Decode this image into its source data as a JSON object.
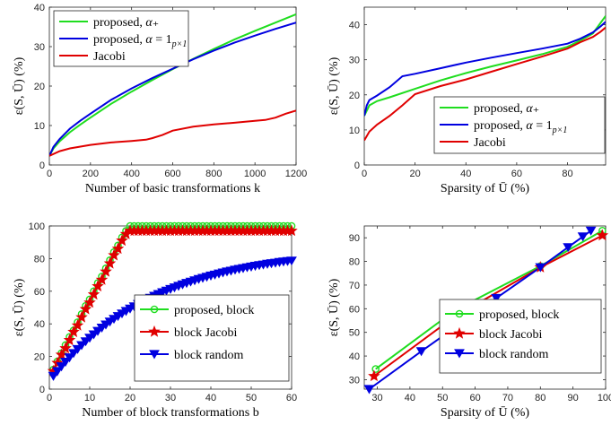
{
  "chart_data": [
    {
      "type": "line",
      "xlabel": "Number of basic transformations k",
      "ylabel": "ε(S, Ū) (%)",
      "xlim": [
        0,
        1200
      ],
      "ylim": [
        0,
        40
      ],
      "xticks": [
        "0",
        "200",
        "400",
        "600",
        "800",
        "1000",
        "1200"
      ],
      "yticks": [
        "0",
        "10",
        "20",
        "30",
        "40"
      ],
      "legend_position": "top-left",
      "series": [
        {
          "name": "proposed, α₊",
          "color": "#1fdd1f",
          "marker": "none",
          "x": [
            0,
            20,
            50,
            100,
            150,
            200,
            300,
            400,
            500,
            600,
            700,
            800,
            900,
            1000,
            1100,
            1200
          ],
          "y": [
            2.3,
            4.2,
            6.0,
            8.3,
            10.2,
            12.0,
            15.5,
            18.6,
            21.5,
            24.3,
            26.9,
            29.4,
            31.8,
            34.0,
            36.1,
            38.2
          ]
        },
        {
          "name": "proposed, α = 1_{p×1}",
          "color": "#0000e0",
          "marker": "none",
          "x": [
            0,
            20,
            50,
            100,
            150,
            200,
            300,
            400,
            500,
            600,
            700,
            800,
            900,
            1000,
            1100,
            1200
          ],
          "y": [
            2.3,
            4.6,
            6.6,
            9.2,
            11.2,
            13.0,
            16.5,
            19.4,
            22.0,
            24.4,
            26.8,
            29.0,
            31.0,
            32.8,
            34.5,
            36.1
          ]
        },
        {
          "name": "Jacobi",
          "color": "#e00000",
          "marker": "none",
          "x": [
            0,
            50,
            100,
            200,
            300,
            400,
            470,
            500,
            550,
            600,
            700,
            800,
            900,
            1000,
            1050,
            1100,
            1150,
            1200
          ],
          "y": [
            2.3,
            3.5,
            4.2,
            5.1,
            5.7,
            6.1,
            6.4,
            6.8,
            7.6,
            8.7,
            9.7,
            10.3,
            10.7,
            11.2,
            11.4,
            12.0,
            13.0,
            13.8
          ]
        }
      ]
    },
    {
      "type": "line",
      "xlabel": "Sparsity of Ū (%)",
      "ylabel": "ε(S, Ū) (%)",
      "xlim": [
        0,
        95
      ],
      "ylim": [
        0,
        45
      ],
      "xticks": [
        "0",
        "20",
        "40",
        "60",
        "80"
      ],
      "yticks": [
        "0",
        "10",
        "20",
        "30",
        "40"
      ],
      "legend_position": "bottom-right",
      "series": [
        {
          "name": "proposed, α₊",
          "color": "#1fdd1f",
          "marker": "none",
          "x": [
            0,
            1,
            2,
            5,
            10,
            20,
            30,
            40,
            50,
            60,
            70,
            80,
            85,
            90,
            93,
            95
          ],
          "y": [
            14,
            15.5,
            17,
            18.2,
            19.3,
            21.7,
            24.1,
            26.2,
            28.1,
            29.8,
            31.6,
            33.7,
            35.5,
            37.5,
            40.5,
            42.5
          ]
        },
        {
          "name": "proposed, α = 1_{p×1}",
          "color": "#0000e0",
          "marker": "none",
          "x": [
            0,
            1,
            2,
            5,
            10,
            15,
            20,
            30,
            40,
            50,
            60,
            70,
            80,
            85,
            90,
            93,
            95
          ],
          "y": [
            14,
            17,
            18.5,
            19.8,
            22.2,
            25.3,
            26.0,
            27.6,
            29.2,
            30.6,
            31.9,
            33.2,
            34.6,
            36.0,
            37.8,
            39.5,
            40.8
          ]
        },
        {
          "name": "Jacobi",
          "color": "#e00000",
          "marker": "none",
          "x": [
            0,
            2,
            5,
            10,
            15,
            20,
            30,
            40,
            50,
            60,
            70,
            80,
            85,
            90,
            93,
            95
          ],
          "y": [
            7,
            9.5,
            11.5,
            14.0,
            17.0,
            20.2,
            22.5,
            24.4,
            26.6,
            28.8,
            30.9,
            33.2,
            35.0,
            36.5,
            38.0,
            39.2
          ]
        }
      ]
    },
    {
      "type": "line",
      "xlabel": "Number of block transformations b",
      "ylabel": "ε(S, Ū) (%)",
      "xlim": [
        0,
        60
      ],
      "ylim": [
        0,
        100
      ],
      "xticks": [
        "0",
        "10",
        "20",
        "30",
        "40",
        "50",
        "60"
      ],
      "yticks": [
        "0",
        "20",
        "40",
        "60",
        "80",
        "100"
      ],
      "legend_position": "bottom-right",
      "series": [
        {
          "name": "proposed, block",
          "color": "#1fdd1f",
          "marker": "circle",
          "x": [
            1,
            2,
            3,
            4,
            5,
            6,
            7,
            8,
            9,
            10,
            11,
            12,
            13,
            14,
            15,
            16,
            17,
            18,
            19,
            20,
            21,
            22,
            23,
            24,
            25,
            26,
            27,
            28,
            29,
            30,
            31,
            32,
            33,
            34,
            35,
            36,
            37,
            38,
            39,
            40,
            41,
            42,
            43,
            44,
            45,
            46,
            47,
            48,
            49,
            50,
            51,
            52,
            53,
            54,
            55,
            56,
            57,
            58,
            59,
            60
          ],
          "y": [
            12,
            17,
            22,
            27,
            32,
            36,
            41,
            46,
            51,
            55,
            60,
            65,
            69,
            74,
            79,
            84,
            88,
            93,
            97,
            100,
            100,
            100,
            100,
            100,
            100,
            100,
            100,
            100,
            100,
            100,
            100,
            100,
            100,
            100,
            100,
            100,
            100,
            100,
            100,
            100,
            100,
            100,
            100,
            100,
            100,
            100,
            100,
            100,
            100,
            100,
            100,
            100,
            100,
            100,
            100,
            100,
            100,
            100,
            100,
            100
          ]
        },
        {
          "name": "block Jacobi",
          "color": "#e00000",
          "marker": "star",
          "x": [
            1,
            2,
            3,
            4,
            5,
            6,
            7,
            8,
            9,
            10,
            11,
            12,
            13,
            14,
            15,
            16,
            17,
            18,
            19,
            20,
            21,
            22,
            23,
            24,
            25,
            26,
            27,
            28,
            29,
            30,
            31,
            32,
            33,
            34,
            35,
            36,
            37,
            38,
            39,
            40,
            41,
            42,
            43,
            44,
            45,
            46,
            47,
            48,
            49,
            50,
            51,
            52,
            53,
            54,
            55,
            56,
            57,
            58,
            59,
            60
          ],
          "y": [
            11,
            16,
            21,
            25,
            30,
            35,
            39,
            44,
            49,
            53,
            58,
            63,
            67,
            72,
            77,
            82,
            86,
            91,
            95,
            97,
            97,
            97,
            97,
            97,
            97,
            97,
            97,
            97,
            97,
            97,
            97,
            97,
            97,
            97,
            97,
            97,
            97,
            97,
            97,
            97,
            97,
            97,
            97,
            97,
            97,
            97,
            97,
            97,
            97,
            97,
            97,
            97,
            97,
            97,
            97,
            97,
            97,
            97,
            97,
            97
          ]
        },
        {
          "name": "block random",
          "color": "#0000e0",
          "marker": "triangle-down",
          "x": [
            1,
            2,
            3,
            4,
            5,
            6,
            7,
            8,
            9,
            10,
            11,
            12,
            13,
            14,
            15,
            16,
            17,
            18,
            19,
            20,
            21,
            22,
            23,
            24,
            25,
            26,
            27,
            28,
            29,
            30,
            31,
            32,
            33,
            34,
            35,
            36,
            37,
            38,
            39,
            40,
            41,
            42,
            43,
            44,
            45,
            46,
            47,
            48,
            49,
            50,
            51,
            52,
            53,
            54,
            55,
            56,
            57,
            58,
            59,
            60
          ],
          "y": [
            8.0,
            11.0,
            13.9,
            16.7,
            19.4,
            22.0,
            24.5,
            26.9,
            29.2,
            31.4,
            33.5,
            35.6,
            37.6,
            39.5,
            41.3,
            43.0,
            44.7,
            46.3,
            47.8,
            49.3,
            50.7,
            52.1,
            53.4,
            54.7,
            55.9,
            57.1,
            58.2,
            59.3,
            60.3,
            61.3,
            62.3,
            63.2,
            64.1,
            65.0,
            65.8,
            66.6,
            67.4,
            68.1,
            68.8,
            69.5,
            70.1,
            70.8,
            71.4,
            72.0,
            72.5,
            73.1,
            73.6,
            74.1,
            74.6,
            75.0,
            75.5,
            75.9,
            76.3,
            76.7,
            77.1,
            77.4,
            77.8,
            78.1,
            78.4,
            78.7
          ]
        }
      ]
    },
    {
      "type": "line",
      "xlabel": "Sparsity of Ū (%)",
      "ylabel": "ε(S, Ū) (%)",
      "xlim": [
        26,
        100
      ],
      "ylim": [
        26,
        95
      ],
      "xticks": [
        "30",
        "40",
        "50",
        "60",
        "70",
        "80",
        "90",
        "100"
      ],
      "yticks": [
        "30",
        "40",
        "50",
        "60",
        "70",
        "80",
        "90"
      ],
      "legend_position": "bottom-right",
      "series": [
        {
          "name": "proposed, block",
          "color": "#1fdd1f",
          "marker": "circle",
          "x": [
            29.5,
            54,
            80,
            99
          ],
          "y": [
            34.5,
            59.5,
            78,
            93
          ]
        },
        {
          "name": "block Jacobi",
          "color": "#e00000",
          "marker": "star",
          "x": [
            29,
            53.5,
            80,
            99
          ],
          "y": [
            31.5,
            56.5,
            77.5,
            91
          ]
        },
        {
          "name": "block random",
          "color": "#0000e0",
          "marker": "triangle-down",
          "x": [
            27.5,
            43.5,
            66.5,
            80,
            88.5,
            93,
            95.5
          ],
          "y": [
            26,
            42,
            64.5,
            77.5,
            86,
            90.5,
            93
          ]
        }
      ]
    }
  ]
}
